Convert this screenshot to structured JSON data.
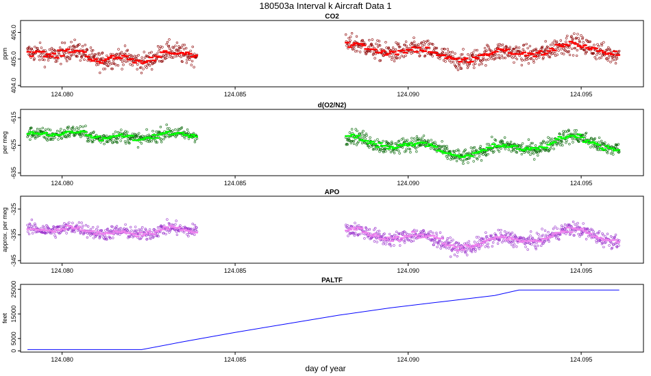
{
  "figure": {
    "title": "180503a   Interval k Aircraft Data 1",
    "xlabel": "day of year"
  },
  "chart_data": [
    {
      "type": "scatter",
      "title": "CO2",
      "ylabel": "ppm",
      "xlim": [
        124.0788,
        124.0968
      ],
      "ylim": [
        403.95,
        406.45
      ],
      "xticks": [
        "124.080",
        "124.085",
        "124.090",
        "124.095"
      ],
      "yticks": [
        "404.0",
        "405.0",
        "406.0"
      ],
      "color": "#ff0000",
      "raw_color": "#8b0000",
      "series": [
        {
          "name": "",
          "start": 124.079,
          "end": 124.0839,
          "mean": 405.1,
          "noise": 0.35,
          "drift": 0.25
        },
        {
          "name": "",
          "start": 124.0882,
          "end": 124.0961,
          "mean": 405.25,
          "noise": 0.35,
          "drift": 0.3
        }
      ]
    },
    {
      "type": "scatter",
      "title": "d(O2/N2)",
      "ylabel": "per meg",
      "xlim": [
        124.0788,
        124.0968
      ],
      "ylim": [
        -636,
        -612
      ],
      "xticks": [
        "124.080",
        "124.085",
        "124.090",
        "124.095"
      ],
      "yticks": [
        "-615",
        "-625",
        "-635"
      ],
      "color": "#00ff00",
      "raw_color": "#006400",
      "series": [
        {
          "name": "",
          "start": 124.079,
          "end": 124.0839,
          "mean": -621.5,
          "noise": 2.3,
          "drift": 1.5
        },
        {
          "name": "",
          "start": 124.0882,
          "end": 124.0961,
          "mean": -625.5,
          "noise": 2.6,
          "drift": 3.5
        }
      ]
    },
    {
      "type": "scatter",
      "title": "APO",
      "ylabel": "approx. per meg",
      "xlim": [
        124.0788,
        124.0968
      ],
      "ylim": [
        -346,
        -320
      ],
      "xticks": [
        "124.080",
        "124.085",
        "124.090",
        "124.095"
      ],
      "yticks": [
        "-325",
        "-335",
        "-345"
      ],
      "color": "#ee82ee",
      "raw_color": "#9932cc",
      "series": [
        {
          "name": "",
          "start": 124.079,
          "end": 124.0839,
          "mean": -333.5,
          "noise": 2.5,
          "drift": 1.5
        },
        {
          "name": "",
          "start": 124.0882,
          "end": 124.0961,
          "mean": -336.5,
          "noise": 2.7,
          "drift": 3.5
        }
      ]
    },
    {
      "type": "line",
      "title": "PALTF",
      "ylabel": "feet",
      "xlim": [
        124.0788,
        124.0968
      ],
      "ylim": [
        -500,
        27000
      ],
      "xticks": [
        "124.080",
        "124.085",
        "124.090",
        "124.095"
      ],
      "yticks": [
        "0",
        "5000",
        "15000",
        "25000"
      ],
      "ytick_values": [
        0,
        5000,
        15000,
        25000
      ],
      "color": "#0000ff",
      "x": [
        124.079,
        124.08,
        124.081,
        124.0823,
        124.0835,
        124.085,
        124.0865,
        124.088,
        124.0895,
        124.091,
        124.0925,
        124.0932,
        124.0945,
        124.0961
      ],
      "y": [
        500,
        500,
        500,
        500,
        3700,
        7500,
        11000,
        14500,
        17500,
        20000,
        22500,
        24700,
        24700,
        24700
      ]
    }
  ]
}
